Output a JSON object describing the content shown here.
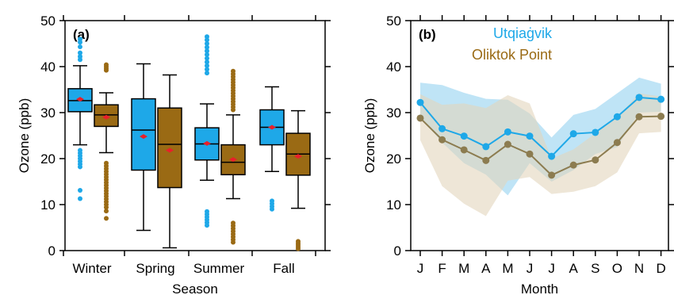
{
  "colors": {
    "utqiagvik": "#1ea8e8",
    "oliktok": "#9a6a14",
    "mean_marker": "#e8202a",
    "utq_band": "#bfe4f6",
    "olik_band": "#e3d6bc",
    "olik_line": "#8c7c50"
  },
  "chart_data": [
    {
      "type": "box",
      "panel_label": "(a)",
      "xlabel": "Season",
      "ylabel": "Ozone (ppb)",
      "ylim": [
        0,
        50
      ],
      "yticks": [
        0,
        10,
        20,
        30,
        40,
        50
      ],
      "categories": [
        "Winter",
        "Spring",
        "Summer",
        "Fall"
      ],
      "series": [
        {
          "key": "utqiagvik",
          "boxes": [
            {
              "whisker_low": 23.0,
              "q1": 30.2,
              "median": 32.6,
              "q3": 35.2,
              "whisker_high": 40.2,
              "mean": 32.9,
              "outliers": [
                41.5,
                42.2,
                43.0,
                44.3,
                45.3,
                46.0,
                21.8,
                21.2,
                20.6,
                20.0,
                19.4,
                18.8,
                18.2,
                13.1,
                11.3
              ]
            },
            {
              "whisker_low": 4.4,
              "q1": 17.5,
              "median": 26.2,
              "q3": 33.0,
              "whisker_high": 40.6,
              "mean": 24.8,
              "outliers": []
            },
            {
              "whisker_low": 15.3,
              "q1": 19.7,
              "median": 23.2,
              "q3": 26.7,
              "whisker_high": 31.9,
              "mean": 23.3,
              "outliers": [
                46.5,
                45.8,
                45.0,
                44.2,
                43.4,
                42.6,
                41.8,
                41.0,
                40.2,
                39.4,
                38.6,
                8.5,
                7.9,
                7.3,
                6.7,
                6.1,
                5.5
              ]
            },
            {
              "whisker_low": 17.2,
              "q1": 23.0,
              "median": 26.8,
              "q3": 30.6,
              "whisker_high": 35.6,
              "mean": 26.8,
              "outliers": [
                10.8,
                10.2,
                9.6,
                9.0
              ]
            }
          ]
        },
        {
          "key": "oliktok",
          "boxes": [
            {
              "whisker_low": 21.3,
              "q1": 27.0,
              "median": 29.5,
              "q3": 31.7,
              "whisker_high": 34.3,
              "mean": 29.0,
              "outliers": [
                40.4,
                40.0,
                39.6,
                39.2,
                19.0,
                18.4,
                17.8,
                17.2,
                16.6,
                16.0,
                15.4,
                14.8,
                14.2,
                13.6,
                13.0,
                12.4,
                11.8,
                11.2,
                10.6,
                10.0,
                9.4,
                8.6,
                7.0
              ]
            },
            {
              "whisker_low": 0.6,
              "q1": 13.7,
              "median": 23.1,
              "q3": 31.0,
              "whisker_high": 38.2,
              "mean": 21.8,
              "outliers": []
            },
            {
              "whisker_low": 11.3,
              "q1": 16.5,
              "median": 19.2,
              "q3": 23.0,
              "whisker_high": 29.5,
              "mean": 19.8,
              "outliers": [
                39.0,
                38.4,
                37.8,
                37.2,
                36.6,
                36.0,
                35.4,
                34.8,
                34.2,
                33.6,
                33.0,
                32.4,
                31.8,
                31.2,
                30.6,
                6.0,
                5.4,
                4.8,
                4.2,
                3.6,
                3.0,
                2.4,
                1.8
              ]
            },
            {
              "whisker_low": 9.2,
              "q1": 16.4,
              "median": 21.0,
              "q3": 25.5,
              "whisker_high": 30.4,
              "mean": 20.5,
              "outliers": [
                2.0,
                1.6,
                1.2,
                0.8,
                0.4
              ]
            }
          ]
        }
      ]
    },
    {
      "type": "line",
      "panel_label": "(b)",
      "xlabel": "Month",
      "ylabel": "Ozone (ppb)",
      "ylim": [
        0,
        50
      ],
      "yticks": [
        0,
        10,
        20,
        30,
        40,
        50
      ],
      "categories": [
        "J",
        "F",
        "M",
        "A",
        "M",
        "J",
        "J",
        "A",
        "S",
        "O",
        "N",
        "D"
      ],
      "series": [
        {
          "key": "utqiagvik",
          "name": "Utqiaġvik",
          "values": [
            32.2,
            26.5,
            24.9,
            22.6,
            25.8,
            24.9,
            20.5,
            25.4,
            25.7,
            29.1,
            33.3,
            32.9
          ],
          "band_low": [
            29.0,
            23.5,
            19.0,
            16.5,
            12.0,
            19.0,
            15.0,
            17.5,
            21.0,
            22.5,
            30.0,
            30.2
          ],
          "band_high": [
            36.5,
            36.0,
            34.3,
            33.0,
            32.8,
            29.8,
            24.6,
            29.5,
            30.8,
            34.2,
            37.6,
            36.3
          ]
        },
        {
          "key": "oliktok",
          "name": "Oliktok Point",
          "values": [
            28.8,
            24.1,
            21.9,
            19.6,
            23.1,
            21.0,
            16.4,
            18.6,
            19.7,
            23.5,
            29.1,
            29.2
          ],
          "band_low": [
            24.0,
            14.0,
            10.2,
            7.5,
            15.2,
            16.0,
            12.3,
            12.8,
            14.0,
            17.0,
            25.5,
            25.8
          ],
          "band_high": [
            34.0,
            31.7,
            32.0,
            31.0,
            33.8,
            32.0,
            20.0,
            22.0,
            25.5,
            29.0,
            34.2,
            33.5
          ]
        }
      ]
    }
  ]
}
